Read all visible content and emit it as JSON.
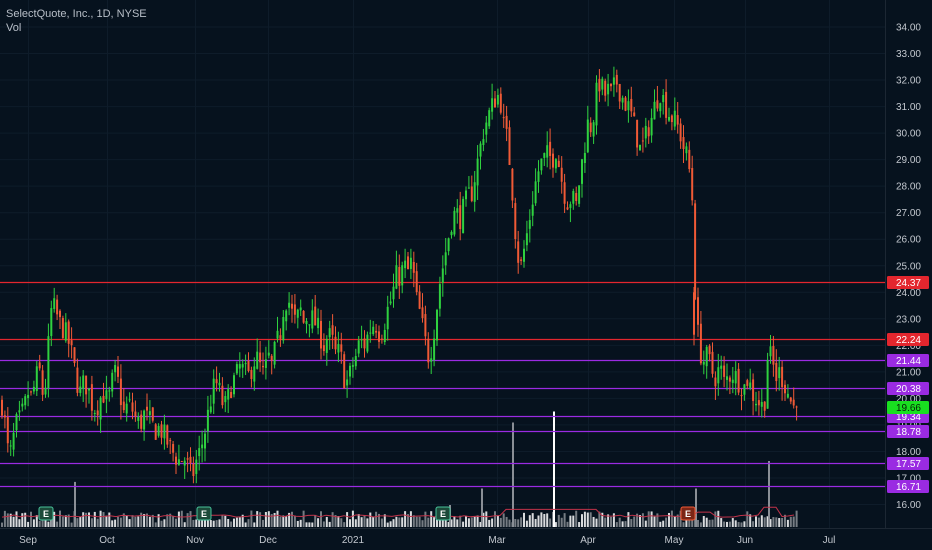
{
  "header": {
    "title": "SelectQuote, Inc., 1D, NYSE",
    "subtitle": "Vol"
  },
  "colors": {
    "background": "#06121e",
    "up": "#2fd13f",
    "down": "#f05a36",
    "red_line": "#e3262e",
    "purple_line": "#9a2be2",
    "volume": "#ffffff",
    "volume_ma": "#c2334a"
  },
  "chart_data": {
    "type": "candlestick",
    "symbol": "SelectQuote, Inc.",
    "interval": "1D",
    "exchange": "NYSE",
    "ylim": [
      15.3,
      34.8
    ],
    "y_ticks": [
      "16.00",
      "17.00",
      "18.00",
      "19.00",
      "20.00",
      "21.00",
      "22.00",
      "23.00",
      "24.00",
      "25.00",
      "26.00",
      "27.00",
      "28.00",
      "29.00",
      "30.00",
      "31.00",
      "32.00",
      "33.00",
      "34.00"
    ],
    "x_labels": [
      "Sep",
      "Oct",
      "Nov",
      "Dec",
      "2021",
      "Mar",
      "Apr",
      "May",
      "Jun",
      "Jul"
    ],
    "levels": [
      {
        "value": 24.37,
        "label": "24.37",
        "color": "red"
      },
      {
        "value": 22.24,
        "label": "22.24",
        "color": "red"
      },
      {
        "value": 21.44,
        "label": "21.44",
        "color": "purple"
      },
      {
        "value": 20.38,
        "label": "20.38",
        "color": "purple"
      },
      {
        "value": 19.34,
        "label": "19.34",
        "color": "purple"
      },
      {
        "value": 18.78,
        "label": "18.78",
        "color": "purple"
      },
      {
        "value": 17.57,
        "label": "17.57",
        "color": "purple"
      },
      {
        "value": 16.71,
        "label": "16.71",
        "color": "purple"
      }
    ],
    "last_price": {
      "value": 19.66,
      "label": "19.66"
    },
    "earnings_markers": [
      {
        "label": "E",
        "date": "Sep",
        "type": "past"
      },
      {
        "label": "E",
        "date": "Nov",
        "type": "past"
      },
      {
        "label": "E",
        "date": "Feb",
        "type": "past"
      },
      {
        "label": "E",
        "date": "May",
        "type": "latest"
      }
    ],
    "close_path": [
      [
        0,
        19.8
      ],
      [
        4,
        18.8
      ],
      [
        7,
        17.6
      ],
      [
        10,
        18.2
      ],
      [
        14,
        19.0
      ],
      [
        18,
        19.2
      ],
      [
        22,
        19.6
      ],
      [
        26,
        20.2
      ],
      [
        30,
        20.0
      ],
      [
        34,
        20.8
      ],
      [
        38,
        21.0
      ],
      [
        42,
        19.8
      ],
      [
        46,
        21.8
      ],
      [
        50,
        23.6
      ],
      [
        54,
        23.2
      ],
      [
        58,
        22.8
      ],
      [
        62,
        22.6
      ],
      [
        66,
        22.2
      ],
      [
        70,
        21.6
      ],
      [
        74,
        20.8
      ],
      [
        78,
        20.2
      ],
      [
        82,
        20.6
      ],
      [
        86,
        20.4
      ],
      [
        90,
        19.8
      ],
      [
        94,
        19.6
      ],
      [
        98,
        20.0
      ],
      [
        102,
        20.2
      ],
      [
        106,
        19.8
      ],
      [
        110,
        20.6
      ],
      [
        114,
        21.0
      ],
      [
        118,
        20.2
      ],
      [
        122,
        19.4
      ],
      [
        126,
        19.8
      ],
      [
        130,
        19.6
      ],
      [
        134,
        19.2
      ],
      [
        138,
        19.0
      ],
      [
        142,
        19.4
      ],
      [
        146,
        19.2
      ],
      [
        150,
        19.0
      ],
      [
        154,
        18.8
      ],
      [
        158,
        18.9
      ],
      [
        162,
        18.6
      ],
      [
        166,
        18.3
      ],
      [
        170,
        18.0
      ],
      [
        174,
        17.8
      ],
      [
        178,
        17.6
      ],
      [
        182,
        17.8
      ],
      [
        186,
        17.4
      ],
      [
        190,
        17.0
      ],
      [
        194,
        17.6
      ],
      [
        198,
        18.0
      ],
      [
        202,
        18.6
      ],
      [
        206,
        19.4
      ],
      [
        210,
        20.2
      ],
      [
        214,
        20.6
      ],
      [
        218,
        20.2
      ],
      [
        222,
        19.6
      ],
      [
        226,
        20.0
      ],
      [
        230,
        20.6
      ],
      [
        234,
        20.8
      ],
      [
        238,
        21.2
      ],
      [
        242,
        21.0
      ],
      [
        246,
        20.8
      ],
      [
        250,
        21.2
      ],
      [
        254,
        21.6
      ],
      [
        258,
        21.2
      ],
      [
        262,
        20.8
      ],
      [
        266,
        21.6
      ],
      [
        270,
        21.2
      ],
      [
        274,
        22.0
      ],
      [
        278,
        22.4
      ],
      [
        282,
        23.6
      ],
      [
        286,
        23.8
      ],
      [
        290,
        23.2
      ],
      [
        294,
        22.8
      ],
      [
        298,
        23.4
      ],
      [
        302,
        22.8
      ],
      [
        306,
        23.2
      ],
      [
        310,
        23.0
      ],
      [
        314,
        22.8
      ],
      [
        318,
        22.4
      ],
      [
        322,
        22.0
      ],
      [
        326,
        22.4
      ],
      [
        330,
        22.2
      ],
      [
        334,
        21.6
      ],
      [
        338,
        21.8
      ],
      [
        342,
        20.8
      ],
      [
        346,
        20.6
      ],
      [
        350,
        21.2
      ],
      [
        354,
        21.6
      ],
      [
        358,
        22.2
      ],
      [
        362,
        22.0
      ],
      [
        366,
        22.4
      ],
      [
        370,
        22.8
      ],
      [
        374,
        22.8
      ],
      [
        378,
        22.4
      ],
      [
        382,
        22.8
      ],
      [
        386,
        23.4
      ],
      [
        390,
        23.8
      ],
      [
        394,
        24.6
      ],
      [
        398,
        24.6
      ],
      [
        402,
        25.0
      ],
      [
        406,
        24.8
      ],
      [
        410,
        25.2
      ],
      [
        414,
        23.8
      ],
      [
        418,
        23.2
      ],
      [
        422,
        22.4
      ],
      [
        426,
        21.6
      ],
      [
        430,
        22.0
      ],
      [
        434,
        23.2
      ],
      [
        438,
        24.4
      ],
      [
        442,
        25.2
      ],
      [
        446,
        26.0
      ],
      [
        450,
        26.8
      ],
      [
        454,
        27.0
      ],
      [
        458,
        26.8
      ],
      [
        462,
        27.2
      ],
      [
        466,
        27.6
      ],
      [
        470,
        27.8
      ],
      [
        474,
        28.6
      ],
      [
        478,
        29.4
      ],
      [
        482,
        30.2
      ],
      [
        486,
        30.6
      ],
      [
        490,
        31.0
      ],
      [
        494,
        31.4
      ],
      [
        498,
        31.4
      ],
      [
        502,
        30.2
      ],
      [
        506,
        29.6
      ],
      [
        510,
        28.0
      ],
      [
        514,
        26.0
      ],
      [
        518,
        24.8
      ],
      [
        522,
        25.6
      ],
      [
        526,
        26.4
      ],
      [
        530,
        27.4
      ],
      [
        534,
        28.2
      ],
      [
        538,
        28.8
      ],
      [
        542,
        29.0
      ],
      [
        546,
        29.2
      ],
      [
        550,
        29.0
      ],
      [
        554,
        29.4
      ],
      [
        558,
        28.6
      ],
      [
        562,
        27.8
      ],
      [
        566,
        27.4
      ],
      [
        570,
        27.6
      ],
      [
        574,
        27.2
      ],
      [
        578,
        28.4
      ],
      [
        582,
        29.4
      ],
      [
        586,
        30.4
      ],
      [
        590,
        30.2
      ],
      [
        594,
        31.4
      ],
      [
        598,
        32.0
      ],
      [
        602,
        31.4
      ],
      [
        606,
        31.6
      ],
      [
        610,
        31.4
      ],
      [
        614,
        32.0
      ],
      [
        618,
        31.6
      ],
      [
        622,
        31.2
      ],
      [
        626,
        31.0
      ],
      [
        630,
        30.6
      ],
      [
        634,
        30.0
      ],
      [
        638,
        29.4
      ],
      [
        642,
        29.6
      ],
      [
        646,
        30.2
      ],
      [
        650,
        30.6
      ],
      [
        654,
        31.2
      ],
      [
        658,
        31.6
      ],
      [
        662,
        31.2
      ],
      [
        666,
        30.8
      ],
      [
        670,
        30.6
      ],
      [
        674,
        30.4
      ],
      [
        678,
        30.0
      ],
      [
        682,
        29.4
      ],
      [
        686,
        29.0
      ],
      [
        690,
        27.8
      ],
      [
        694,
        23.0
      ],
      [
        698,
        21.8
      ],
      [
        702,
        21.4
      ],
      [
        706,
        21.6
      ],
      [
        710,
        21.0
      ],
      [
        714,
        20.8
      ],
      [
        718,
        21.2
      ],
      [
        722,
        20.6
      ],
      [
        726,
        20.8
      ],
      [
        730,
        21.0
      ],
      [
        734,
        20.8
      ],
      [
        738,
        20.6
      ],
      [
        742,
        20.4
      ],
      [
        746,
        20.8
      ],
      [
        750,
        20.2
      ],
      [
        754,
        20.0
      ],
      [
        758,
        19.8
      ],
      [
        762,
        19.6
      ],
      [
        766,
        21.8
      ],
      [
        770,
        21.4
      ],
      [
        774,
        20.8
      ],
      [
        778,
        21.0
      ],
      [
        782,
        20.6
      ],
      [
        786,
        20.2
      ],
      [
        790,
        19.8
      ],
      [
        794,
        19.5
      ],
      [
        797,
        19.66
      ]
    ],
    "volume_spikes": [
      {
        "t": 50,
        "v": 0.34
      },
      {
        "t": 73,
        "v": 0.82
      },
      {
        "t": 448,
        "v": 0.4
      },
      {
        "t": 480,
        "v": 0.7
      },
      {
        "t": 511,
        "v": 1.9
      },
      {
        "t": 552,
        "v": 2.1
      },
      {
        "t": 694,
        "v": 0.7
      },
      {
        "t": 767,
        "v": 1.2
      }
    ]
  }
}
